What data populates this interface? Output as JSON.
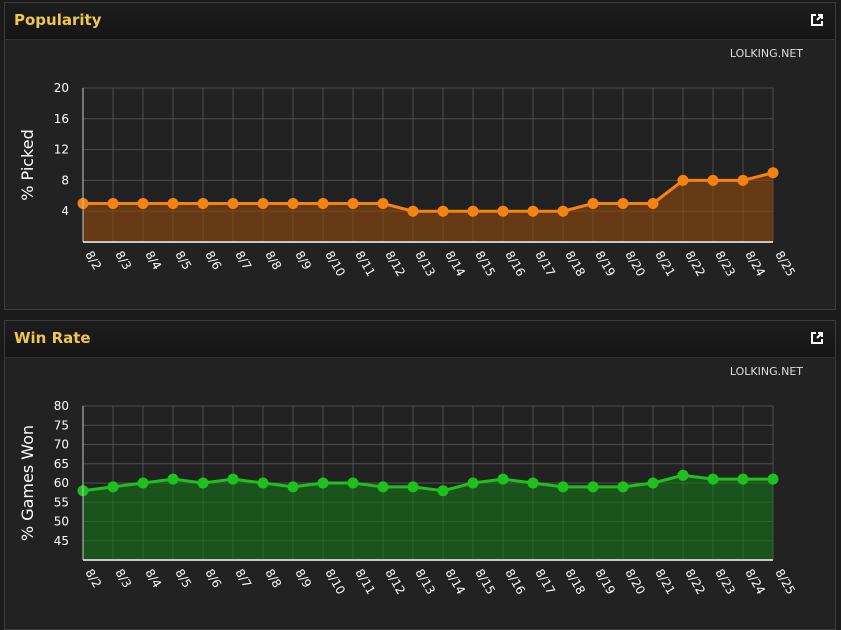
{
  "panels": [
    {
      "title": "Popularity",
      "credit": "LOLKING.NET",
      "icon": "external-link-icon"
    },
    {
      "title": "Win Rate",
      "credit": "LOLKING.NET",
      "icon": "external-link-icon"
    }
  ],
  "chart_data": [
    {
      "type": "area",
      "title": "",
      "ylabel": "% Picked",
      "xlabel": "",
      "ylim": [
        0,
        20
      ],
      "yticks": [
        4,
        8,
        12,
        16,
        20
      ],
      "categories": [
        "8/2",
        "8/3",
        "8/4",
        "8/5",
        "8/6",
        "8/7",
        "8/8",
        "8/9",
        "8/10",
        "8/11",
        "8/12",
        "8/13",
        "8/14",
        "8/15",
        "8/16",
        "8/17",
        "8/18",
        "8/19",
        "8/20",
        "8/21",
        "8/22",
        "8/23",
        "8/24",
        "8/25"
      ],
      "values": [
        5,
        5,
        5,
        5,
        5,
        5,
        5,
        5,
        5,
        5,
        5,
        4,
        4,
        4,
        4,
        4,
        4,
        5,
        5,
        5,
        8,
        8,
        8,
        9
      ],
      "color": "#f5830f",
      "fill": "#6b3c12",
      "grid": true
    },
    {
      "type": "area",
      "title": "",
      "ylabel": "% Games Won",
      "xlabel": "",
      "ylim": [
        40,
        80
      ],
      "yticks": [
        45,
        50,
        55,
        60,
        65,
        70,
        75,
        80
      ],
      "categories": [
        "8/2",
        "8/3",
        "8/4",
        "8/5",
        "8/6",
        "8/7",
        "8/8",
        "8/9",
        "8/10",
        "8/11",
        "8/12",
        "8/13",
        "8/14",
        "8/15",
        "8/16",
        "8/17",
        "8/18",
        "8/19",
        "8/20",
        "8/21",
        "8/22",
        "8/23",
        "8/24",
        "8/25"
      ],
      "values": [
        58,
        59,
        60,
        61,
        60,
        61,
        60,
        59,
        60,
        60,
        59,
        59,
        58,
        60,
        61,
        60,
        59,
        59,
        59,
        60,
        62,
        61,
        61,
        61
      ],
      "color": "#1ec01e",
      "fill": "#1a5a1c",
      "grid": true
    }
  ]
}
